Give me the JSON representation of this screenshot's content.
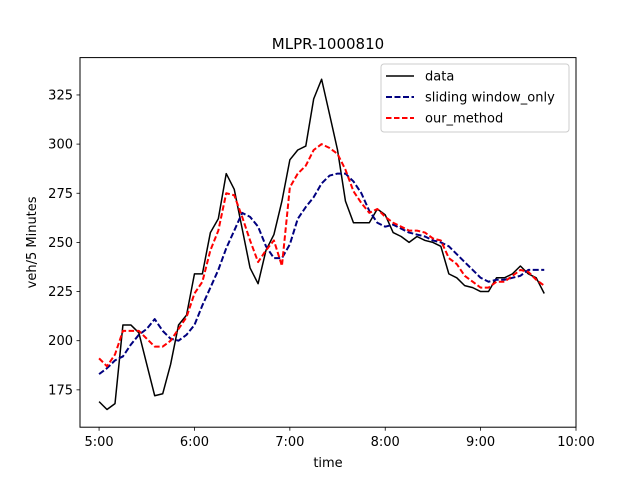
{
  "chart_data": {
    "type": "line",
    "title": "MLPR-1000810",
    "xlabel": "time",
    "ylabel": "veh/5 Minutes",
    "x_unit": "hours",
    "xlim": [
      4.8,
      10.0
    ],
    "ylim": [
      156,
      344
    ],
    "xticks": [
      {
        "value": 5,
        "label": "5:00"
      },
      {
        "value": 6,
        "label": "6:00"
      },
      {
        "value": 7,
        "label": "7:00"
      },
      {
        "value": 8,
        "label": "8:00"
      },
      {
        "value": 9,
        "label": "9:00"
      },
      {
        "value": 10,
        "label": "10:00"
      }
    ],
    "yticks": [
      175,
      200,
      225,
      250,
      275,
      300,
      325
    ],
    "grid": false,
    "legend_position": "top-right",
    "series": [
      {
        "name": "data",
        "color": "#000000",
        "style": "solid",
        "points": [
          [
            5.0,
            169
          ],
          [
            5.083,
            165
          ],
          [
            5.167,
            168
          ],
          [
            5.25,
            208
          ],
          [
            5.333,
            208
          ],
          [
            5.417,
            204
          ],
          [
            5.5,
            188
          ],
          [
            5.583,
            172
          ],
          [
            5.667,
            173
          ],
          [
            5.75,
            188
          ],
          [
            5.833,
            208
          ],
          [
            5.917,
            213
          ],
          [
            6.0,
            234
          ],
          [
            6.083,
            234
          ],
          [
            6.167,
            255
          ],
          [
            6.25,
            262
          ],
          [
            6.333,
            285
          ],
          [
            6.417,
            277
          ],
          [
            6.5,
            257
          ],
          [
            6.583,
            237
          ],
          [
            6.667,
            229
          ],
          [
            6.75,
            246
          ],
          [
            6.833,
            254
          ],
          [
            6.917,
            271
          ],
          [
            7.0,
            292
          ],
          [
            7.083,
            297
          ],
          [
            7.167,
            299
          ],
          [
            7.25,
            323
          ],
          [
            7.333,
            333
          ],
          [
            7.417,
            315
          ],
          [
            7.5,
            297
          ],
          [
            7.583,
            271
          ],
          [
            7.667,
            260
          ],
          [
            7.75,
            260
          ],
          [
            7.833,
            260
          ],
          [
            7.917,
            267
          ],
          [
            8.0,
            264
          ],
          [
            8.083,
            255
          ],
          [
            8.167,
            253
          ],
          [
            8.25,
            250
          ],
          [
            8.333,
            253
          ],
          [
            8.417,
            251
          ],
          [
            8.5,
            250
          ],
          [
            8.583,
            248
          ],
          [
            8.667,
            234
          ],
          [
            8.75,
            232
          ],
          [
            8.833,
            228
          ],
          [
            8.917,
            227
          ],
          [
            9.0,
            225
          ],
          [
            9.083,
            225
          ],
          [
            9.167,
            232
          ],
          [
            9.25,
            232
          ],
          [
            9.333,
            234
          ],
          [
            9.417,
            238
          ],
          [
            9.5,
            234
          ],
          [
            9.583,
            232
          ],
          [
            9.667,
            224
          ]
        ]
      },
      {
        "name": "sliding window_only",
        "color": "#00007f",
        "style": "dashed",
        "points": [
          [
            5.0,
            183
          ],
          [
            5.083,
            186
          ],
          [
            5.167,
            190
          ],
          [
            5.25,
            192
          ],
          [
            5.333,
            198
          ],
          [
            5.417,
            203
          ],
          [
            5.5,
            206
          ],
          [
            5.583,
            211
          ],
          [
            5.667,
            205
          ],
          [
            5.75,
            201
          ],
          [
            5.833,
            200
          ],
          [
            5.917,
            203
          ],
          [
            6.0,
            208
          ],
          [
            6.083,
            218
          ],
          [
            6.167,
            227
          ],
          [
            6.25,
            236
          ],
          [
            6.333,
            247
          ],
          [
            6.417,
            256
          ],
          [
            6.5,
            265
          ],
          [
            6.583,
            263
          ],
          [
            6.667,
            258
          ],
          [
            6.75,
            248
          ],
          [
            6.833,
            242
          ],
          [
            6.917,
            242
          ],
          [
            7.0,
            249
          ],
          [
            7.083,
            262
          ],
          [
            7.167,
            268
          ],
          [
            7.25,
            273
          ],
          [
            7.333,
            280
          ],
          [
            7.417,
            284
          ],
          [
            7.5,
            285
          ],
          [
            7.583,
            285
          ],
          [
            7.667,
            281
          ],
          [
            7.75,
            275
          ],
          [
            7.833,
            266
          ],
          [
            7.917,
            260
          ],
          [
            8.0,
            258
          ],
          [
            8.083,
            259
          ],
          [
            8.167,
            257
          ],
          [
            8.25,
            255
          ],
          [
            8.333,
            254
          ],
          [
            8.417,
            253
          ],
          [
            8.5,
            251
          ],
          [
            8.583,
            250
          ],
          [
            8.667,
            248
          ],
          [
            8.75,
            244
          ],
          [
            8.833,
            240
          ],
          [
            8.917,
            236
          ],
          [
            9.0,
            232
          ],
          [
            9.083,
            230
          ],
          [
            9.167,
            231
          ],
          [
            9.25,
            231
          ],
          [
            9.333,
            232
          ],
          [
            9.417,
            233
          ],
          [
            9.5,
            236
          ],
          [
            9.583,
            236
          ],
          [
            9.667,
            236
          ]
        ]
      },
      {
        "name": "our_method",
        "color": "#ff0000",
        "style": "dashed",
        "points": [
          [
            5.0,
            191
          ],
          [
            5.083,
            187
          ],
          [
            5.167,
            193
          ],
          [
            5.25,
            205
          ],
          [
            5.333,
            205
          ],
          [
            5.417,
            205
          ],
          [
            5.5,
            201
          ],
          [
            5.583,
            197
          ],
          [
            5.667,
            197
          ],
          [
            5.75,
            200
          ],
          [
            5.833,
            206
          ],
          [
            5.917,
            212
          ],
          [
            6.0,
            224
          ],
          [
            6.083,
            230
          ],
          [
            6.167,
            246
          ],
          [
            6.25,
            256
          ],
          [
            6.333,
            275
          ],
          [
            6.417,
            274
          ],
          [
            6.5,
            263
          ],
          [
            6.583,
            251
          ],
          [
            6.667,
            240
          ],
          [
            6.75,
            246
          ],
          [
            6.833,
            251
          ],
          [
            6.917,
            238
          ],
          [
            7.0,
            278
          ],
          [
            7.083,
            285
          ],
          [
            7.167,
            289
          ],
          [
            7.25,
            297
          ],
          [
            7.333,
            300
          ],
          [
            7.417,
            298
          ],
          [
            7.5,
            295
          ],
          [
            7.583,
            287
          ],
          [
            7.667,
            276
          ],
          [
            7.75,
            270
          ],
          [
            7.833,
            265
          ],
          [
            7.917,
            267
          ],
          [
            8.0,
            263
          ],
          [
            8.083,
            260
          ],
          [
            8.167,
            258
          ],
          [
            8.25,
            256
          ],
          [
            8.333,
            256
          ],
          [
            8.417,
            255
          ],
          [
            8.5,
            252
          ],
          [
            8.583,
            251
          ],
          [
            8.667,
            242
          ],
          [
            8.75,
            239
          ],
          [
            8.833,
            233
          ],
          [
            8.917,
            230
          ],
          [
            9.0,
            227
          ],
          [
            9.083,
            227
          ],
          [
            9.167,
            230
          ],
          [
            9.25,
            230
          ],
          [
            9.333,
            233
          ],
          [
            9.417,
            236
          ],
          [
            9.5,
            235
          ],
          [
            9.583,
            231
          ],
          [
            9.667,
            228
          ]
        ]
      }
    ]
  }
}
